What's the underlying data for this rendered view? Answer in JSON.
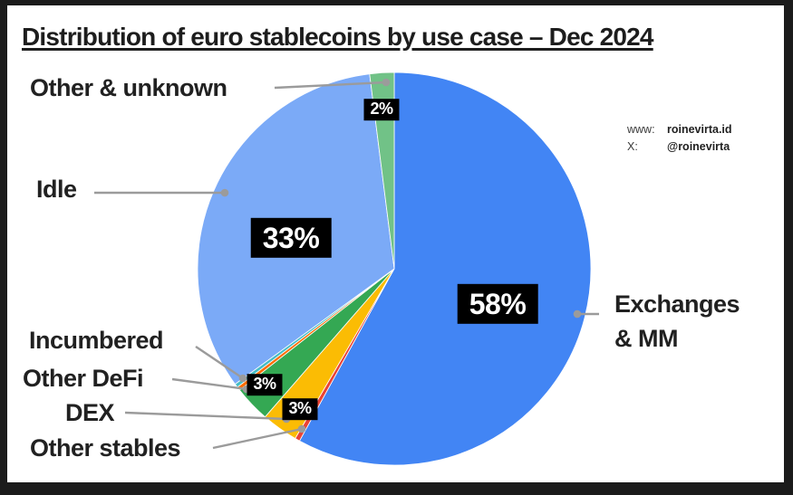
{
  "title": "Distribution of euro stablecoins by use case – Dec 2024",
  "watermark": {
    "www_label": "www:",
    "www_value": "roinevirta.id",
    "x_label": "X:",
    "x_value": "@roinevirta"
  },
  "chart_data": {
    "type": "pie",
    "title": "Distribution of euro stablecoins by use case – Dec 2024",
    "unit": "percent",
    "direction": "clockwise",
    "start_angle_deg": 0,
    "legend_position": "callout-labels",
    "slices": [
      {
        "label": "Exchanges & MM",
        "value": 58,
        "display": "58%",
        "color": "#4285F4"
      },
      {
        "label": "Other stables",
        "value": 0.4,
        "display": "",
        "color": "#EA4335"
      },
      {
        "label": "DEX",
        "value": 3,
        "display": "3%",
        "color": "#FBBC04"
      },
      {
        "label": "Other DeFi",
        "value": 3,
        "display": "3%",
        "color": "#34A853"
      },
      {
        "label": "Incumbered",
        "value": 0.3,
        "display": "",
        "color": "#FF6D01"
      },
      {
        "label": "",
        "value": 0.3,
        "display": "",
        "color": "#46BDC6"
      },
      {
        "label": "Idle",
        "value": 33,
        "display": "33%",
        "color": "#7BAAF7"
      },
      {
        "label": "Other & unknown",
        "value": 2,
        "display": "2%",
        "color": "#71C287"
      }
    ]
  }
}
